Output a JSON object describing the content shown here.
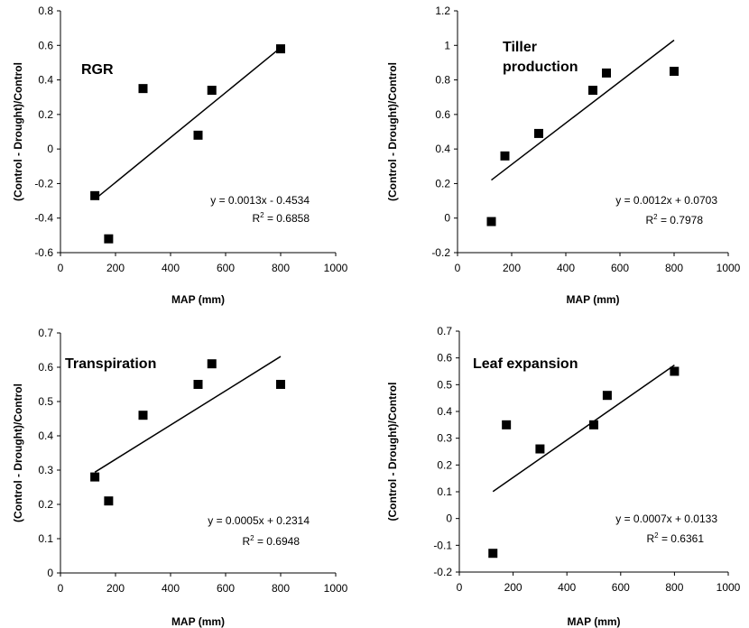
{
  "chart_data": [
    {
      "type": "scatter",
      "title": "RGR",
      "xlabel": "MAP (mm)",
      "ylabel": "(Control - Drought)/Control",
      "xlim": [
        0,
        1000
      ],
      "ylim": [
        -0.6,
        0.8
      ],
      "xticks": [
        "0",
        "200",
        "400",
        "600",
        "800",
        "1000"
      ],
      "yticks": [
        "-0.6",
        "-0.4",
        "-0.2",
        "0",
        "0.2",
        "0.4",
        "0.6",
        "0.8"
      ],
      "x": [
        125,
        175,
        300,
        500,
        550,
        800
      ],
      "y": [
        -0.27,
        -0.52,
        0.35,
        0.08,
        0.34,
        0.58
      ],
      "trendline": {
        "slope": 0.0013,
        "intercept": -0.4534,
        "x_range": [
          125,
          800
        ]
      },
      "equation": "y = 0.0013x - 0.4534",
      "r2_prefix": "R",
      "r2_value": " = 0.6858"
    },
    {
      "type": "scatter",
      "title": "Tiller production",
      "title_lines": [
        "Tiller",
        "production"
      ],
      "xlabel": "MAP (mm)",
      "ylabel": "(Control - Drought)/Control",
      "xlim": [
        0,
        1000
      ],
      "ylim": [
        -0.2,
        1.2
      ],
      "xticks": [
        "0",
        "200",
        "400",
        "600",
        "800",
        "1000"
      ],
      "yticks": [
        "-0.2",
        "0",
        "0.2",
        "0.4",
        "0.6",
        "0.8",
        "1",
        "1.2"
      ],
      "x": [
        125,
        175,
        300,
        500,
        550,
        800
      ],
      "y": [
        -0.02,
        0.36,
        0.49,
        0.74,
        0.84,
        0.85
      ],
      "trendline": {
        "slope": 0.0012,
        "intercept": 0.0703,
        "x_range": [
          125,
          800
        ]
      },
      "equation": "y = 0.0012x + 0.0703",
      "r2_prefix": "R",
      "r2_value": " = 0.7978"
    },
    {
      "type": "scatter",
      "title": "Transpiration",
      "xlabel": "MAP (mm)",
      "ylabel": "(Control - Drought)/Control",
      "xlim": [
        0,
        1000
      ],
      "ylim": [
        0,
        0.7
      ],
      "xticks": [
        "0",
        "200",
        "400",
        "600",
        "800",
        "1000"
      ],
      "yticks": [
        "0",
        "0.1",
        "0.2",
        "0.3",
        "0.4",
        "0.5",
        "0.6",
        "0.7"
      ],
      "x": [
        125,
        175,
        300,
        500,
        550,
        800
      ],
      "y": [
        0.28,
        0.21,
        0.46,
        0.55,
        0.61,
        0.55
      ],
      "trendline": {
        "slope": 0.0005,
        "intercept": 0.2314,
        "x_range": [
          125,
          800
        ]
      },
      "equation": "y = 0.0005x + 0.2314",
      "r2_prefix": "R",
      "r2_value": " = 0.6948"
    },
    {
      "type": "scatter",
      "title": "Leaf expansion",
      "xlabel": "MAP (mm)",
      "ylabel": "(Control - Drought)/Control",
      "xlim": [
        0,
        1000
      ],
      "ylim": [
        -0.2,
        0.7
      ],
      "xticks": [
        "0",
        "200",
        "400",
        "600",
        "800",
        "1000"
      ],
      "yticks": [
        "-0.2",
        "-0.1",
        "0",
        "0.1",
        "0.2",
        "0.3",
        "0.4",
        "0.5",
        "0.6",
        "0.7"
      ],
      "x": [
        125,
        175,
        300,
        500,
        550,
        800
      ],
      "y": [
        -0.13,
        0.35,
        0.26,
        0.35,
        0.46,
        0.55
      ],
      "trendline": {
        "slope": 0.0007,
        "intercept": 0.0133,
        "x_range": [
          125,
          800
        ]
      },
      "equation": "y = 0.0007x + 0.0133",
      "r2_prefix": "R",
      "r2_value": " = 0.6361"
    }
  ]
}
